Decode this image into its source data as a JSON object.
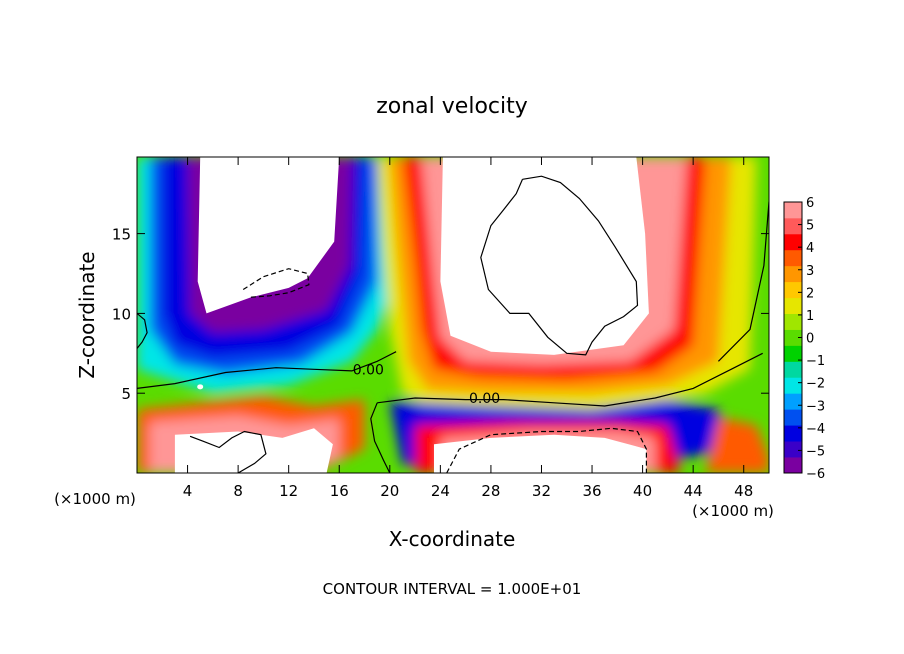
{
  "chart_data": {
    "type": "heatmap",
    "title": "zonal velocity",
    "xlabel": "X-coordinate",
    "ylabel": "Z-coordinate",
    "x_units_left": "(×1000 m)",
    "x_units_right": "(×1000 m)",
    "xlim": [
      0,
      50
    ],
    "ylim": [
      0,
      19.8
    ],
    "x_ticks": [
      4,
      8,
      12,
      16,
      20,
      24,
      28,
      32,
      36,
      40,
      44,
      48
    ],
    "y_ticks": [
      5,
      10,
      15
    ],
    "colorbar": {
      "min": -6,
      "max": 6,
      "ticks": [
        6,
        5,
        4,
        3,
        2,
        1,
        0,
        -1,
        -2,
        -3,
        -4,
        -5,
        -6
      ],
      "colors": [
        "#7a00a0",
        "#3a00c8",
        "#0000e0",
        "#0050f0",
        "#00a0ff",
        "#00e6e6",
        "#00d8a0",
        "#00d200",
        "#5adc00",
        "#a0e600",
        "#e6e600",
        "#ffc800",
        "#ff9600",
        "#ff5a00",
        "#ff0000",
        "#ff5a5a",
        "#ff9696"
      ]
    },
    "contour_labels": [
      {
        "text": "0.00",
        "x": 18.3,
        "z": 6.5
      },
      {
        "text": "0.00",
        "x": 27.5,
        "z": 4.7
      }
    ],
    "footer": "CONTOUR INTERVAL = 1.000E+01",
    "saturation_color": "#ffffff",
    "grid": false,
    "legend": "colorbar right"
  }
}
